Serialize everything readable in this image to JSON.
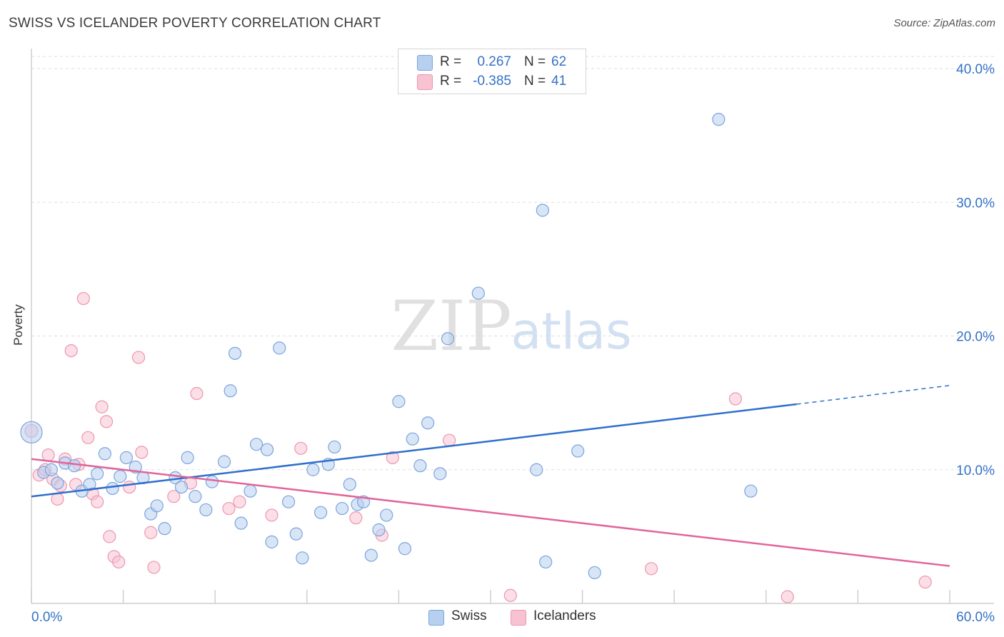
{
  "title": "SWISS VS ICELANDER POVERTY CORRELATION CHART",
  "source": "Source: ZipAtlas.com",
  "watermark": {
    "zip": "ZIP",
    "atlas": "atlas"
  },
  "legend_top": {
    "rows": [
      {
        "r_label": "R =",
        "r_value": "0.267",
        "n_label": "N =",
        "n_value": "62"
      },
      {
        "r_label": "R =",
        "r_value": "-0.385",
        "n_label": "N =",
        "n_value": "41"
      }
    ]
  },
  "legend_bottom": {
    "swiss": "Swiss",
    "icelanders": "Icelanders"
  },
  "colors": {
    "swiss_fill": "#b8d0f0",
    "swiss_stroke": "#7aa5dc",
    "swiss_line": "#2f6fcc",
    "ice_fill": "#f7c3d2",
    "ice_stroke": "#ec97b2",
    "ice_line": "#e2659a",
    "tick_label": "#3572c6",
    "grid": "#dddddd"
  },
  "chart_data": {
    "type": "scatter",
    "title": "SWISS VS ICELANDER POVERTY CORRELATION CHART",
    "xlabel": "",
    "ylabel": "Poverty",
    "xlim": [
      0,
      60
    ],
    "ylim": [
      0,
      40
    ],
    "x_tick_labels": [
      "0.0%",
      "60.0%"
    ],
    "y_ticks": [
      10,
      20,
      30,
      40
    ],
    "y_tick_labels": [
      "10.0%",
      "20.0%",
      "30.0%",
      "40.0%"
    ],
    "series": [
      {
        "name": "Swiss",
        "R": 0.267,
        "N": 62,
        "trend": {
          "x0": 0,
          "y0": 8.0,
          "x1": 50,
          "y1": 14.9,
          "dashed_to_x": 60,
          "dashed_to_y": 16.3
        },
        "points": [
          [
            0.0,
            12.8
          ],
          [
            0.8,
            9.8
          ],
          [
            1.3,
            10.0
          ],
          [
            1.7,
            9.0
          ],
          [
            2.2,
            10.5
          ],
          [
            2.8,
            10.3
          ],
          [
            3.3,
            8.4
          ],
          [
            3.8,
            8.9
          ],
          [
            4.3,
            9.7
          ],
          [
            4.8,
            11.2
          ],
          [
            5.3,
            8.6
          ],
          [
            5.8,
            9.5
          ],
          [
            6.2,
            10.9
          ],
          [
            6.8,
            10.2
          ],
          [
            7.3,
            9.4
          ],
          [
            7.8,
            6.7
          ],
          [
            8.2,
            7.3
          ],
          [
            8.7,
            5.6
          ],
          [
            9.4,
            9.4
          ],
          [
            9.8,
            8.7
          ],
          [
            10.2,
            10.9
          ],
          [
            10.7,
            8.0
          ],
          [
            11.4,
            7.0
          ],
          [
            11.8,
            9.1
          ],
          [
            12.6,
            10.6
          ],
          [
            13.0,
            15.9
          ],
          [
            13.3,
            18.7
          ],
          [
            13.7,
            6.0
          ],
          [
            14.3,
            8.4
          ],
          [
            14.7,
            11.9
          ],
          [
            15.4,
            11.5
          ],
          [
            15.7,
            4.6
          ],
          [
            16.2,
            19.1
          ],
          [
            16.8,
            7.6
          ],
          [
            17.3,
            5.2
          ],
          [
            17.7,
            3.4
          ],
          [
            18.4,
            10.0
          ],
          [
            18.9,
            6.8
          ],
          [
            19.4,
            10.4
          ],
          [
            19.8,
            11.7
          ],
          [
            20.3,
            7.1
          ],
          [
            20.8,
            8.9
          ],
          [
            21.3,
            7.4
          ],
          [
            21.7,
            7.6
          ],
          [
            22.2,
            3.6
          ],
          [
            22.7,
            5.5
          ],
          [
            23.2,
            6.6
          ],
          [
            24.0,
            15.1
          ],
          [
            24.4,
            4.1
          ],
          [
            24.9,
            12.3
          ],
          [
            25.4,
            10.3
          ],
          [
            25.9,
            13.5
          ],
          [
            26.7,
            9.7
          ],
          [
            27.2,
            19.8
          ],
          [
            29.2,
            23.2
          ],
          [
            33.0,
            10.0
          ],
          [
            33.4,
            29.4
          ],
          [
            33.6,
            3.1
          ],
          [
            35.7,
            11.4
          ],
          [
            36.8,
            2.3
          ],
          [
            44.9,
            36.2
          ],
          [
            47.0,
            8.4
          ]
        ]
      },
      {
        "name": "Icelanders",
        "R": -0.385,
        "N": 41,
        "trend": {
          "x0": 0,
          "y0": 10.8,
          "x1": 60,
          "y1": 2.8
        },
        "points": [
          [
            0.0,
            12.9
          ],
          [
            0.5,
            9.6
          ],
          [
            0.9,
            10.0
          ],
          [
            1.1,
            11.1
          ],
          [
            1.4,
            9.3
          ],
          [
            1.7,
            7.8
          ],
          [
            1.9,
            8.8
          ],
          [
            2.2,
            10.8
          ],
          [
            2.6,
            18.9
          ],
          [
            2.9,
            8.9
          ],
          [
            3.1,
            10.4
          ],
          [
            3.4,
            22.8
          ],
          [
            3.7,
            12.4
          ],
          [
            4.0,
            8.2
          ],
          [
            4.3,
            7.6
          ],
          [
            4.6,
            14.7
          ],
          [
            4.9,
            13.6
          ],
          [
            5.1,
            5.0
          ],
          [
            5.4,
            3.5
          ],
          [
            5.7,
            3.1
          ],
          [
            6.4,
            8.7
          ],
          [
            7.0,
            18.4
          ],
          [
            7.2,
            11.3
          ],
          [
            7.8,
            5.3
          ],
          [
            8.0,
            2.7
          ],
          [
            9.3,
            8.0
          ],
          [
            10.4,
            9.0
          ],
          [
            10.8,
            15.7
          ],
          [
            12.9,
            7.1
          ],
          [
            13.6,
            7.6
          ],
          [
            15.7,
            6.6
          ],
          [
            17.6,
            11.6
          ],
          [
            21.2,
            6.4
          ],
          [
            22.9,
            5.1
          ],
          [
            23.6,
            10.9
          ],
          [
            27.3,
            12.2
          ],
          [
            31.3,
            0.6
          ],
          [
            40.5,
            2.6
          ],
          [
            46.0,
            15.3
          ],
          [
            49.4,
            0.5
          ],
          [
            58.4,
            1.6
          ]
        ]
      }
    ]
  }
}
